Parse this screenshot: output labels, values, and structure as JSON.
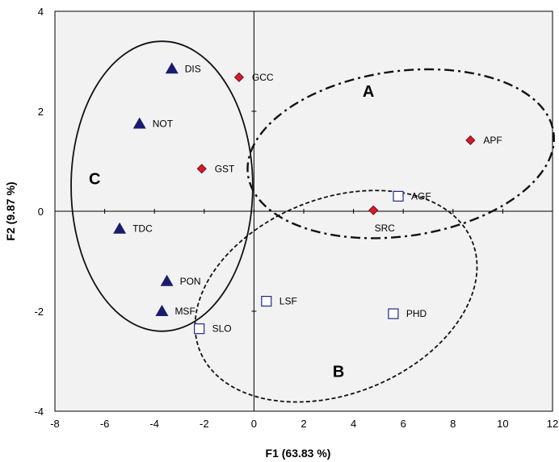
{
  "chart_data": {
    "type": "scatter",
    "xlabel": "F1 (63.83 %)",
    "ylabel": "F2 (9.87 %)",
    "xlim": [
      -8,
      12
    ],
    "ylim": [
      -4,
      4
    ],
    "xticks": [
      "-8",
      "-6",
      "-4",
      "-2",
      "0",
      "2",
      "4",
      "6",
      "8",
      "10",
      "12"
    ],
    "yticks": [
      "-4",
      "-2",
      "0",
      "2",
      "4"
    ],
    "grid": false,
    "plot_background": "#f2f2f2",
    "series": [
      {
        "marker": "triangle",
        "color": "#1b1b6e",
        "points": [
          {
            "label": "DIS",
            "x": -3.3,
            "y": 2.85
          },
          {
            "label": "NOT",
            "x": -4.6,
            "y": 1.75
          },
          {
            "label": "TDC",
            "x": -5.4,
            "y": -0.35
          },
          {
            "label": "PON",
            "x": -3.5,
            "y": -1.4
          },
          {
            "label": "MSF",
            "x": -3.7,
            "y": -2.0
          }
        ]
      },
      {
        "marker": "diamond",
        "color": "#d7192a",
        "points": [
          {
            "label": "GCC",
            "x": -0.6,
            "y": 2.68
          },
          {
            "label": "GST",
            "x": -2.1,
            "y": 0.85
          },
          {
            "label": "APF",
            "x": 8.7,
            "y": 1.42
          },
          {
            "label": "SRC",
            "x": 4.8,
            "y": 0.02
          }
        ]
      },
      {
        "marker": "square-open",
        "color": "#1f2a8a",
        "points": [
          {
            "label": "AGF",
            "x": 5.8,
            "y": 0.3
          },
          {
            "label": "LSF",
            "x": 0.5,
            "y": -1.8
          },
          {
            "label": "SLO",
            "x": -2.2,
            "y": -2.35
          },
          {
            "label": "PHD",
            "x": 5.6,
            "y": -2.05
          }
        ]
      }
    ],
    "groups": [
      {
        "label": "A",
        "style": "dash-dot",
        "label_x": 4.6,
        "label_y": 2.4,
        "cx": 5.9,
        "cy": 1.15,
        "rx": 6.2,
        "ry": 1.65,
        "rotation_deg": -8
      },
      {
        "label": "B",
        "style": "dashed",
        "label_x": 3.4,
        "label_y": -3.2,
        "cx": 3.3,
        "cy": -1.7,
        "rx": 5.9,
        "ry": 1.95,
        "rotation_deg": -22
      },
      {
        "label": "C",
        "style": "solid",
        "label_x": -6.4,
        "label_y": 0.65,
        "cx": -3.7,
        "cy": 0.5,
        "rx": 3.65,
        "ry": 2.9,
        "rotation_deg": 0
      }
    ]
  }
}
